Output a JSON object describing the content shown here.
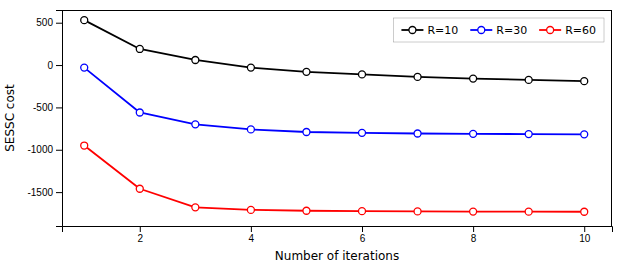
{
  "chart_data": {
    "type": "line",
    "xlabel": "Number of iterations",
    "ylabel": "SESSC cost",
    "x": [
      1,
      2,
      3,
      4,
      5,
      6,
      7,
      8,
      9,
      10
    ],
    "series": [
      {
        "name": "R=10",
        "color": "#000000",
        "values": [
          530,
          190,
          60,
          -30,
          -80,
          -110,
          -140,
          -160,
          -175,
          -190
        ]
      },
      {
        "name": "R=30",
        "color": "#0000ff",
        "values": [
          -30,
          -560,
          -700,
          -760,
          -790,
          -800,
          -808,
          -812,
          -815,
          -818
        ]
      },
      {
        "name": "R=60",
        "color": "#ff0000",
        "values": [
          -950,
          -1460,
          -1680,
          -1710,
          -1720,
          -1725,
          -1728,
          -1730,
          -1731,
          -1732
        ]
      }
    ],
    "xlim": [
      0.6,
      10.5
    ],
    "ylim": [
      -1900,
      650
    ],
    "xticks": [
      2,
      4,
      6,
      8,
      10
    ],
    "yticks": [
      500,
      0,
      -500,
      -1000,
      -1500
    ],
    "marker": "circle",
    "grid": false,
    "legend": "upper right"
  }
}
